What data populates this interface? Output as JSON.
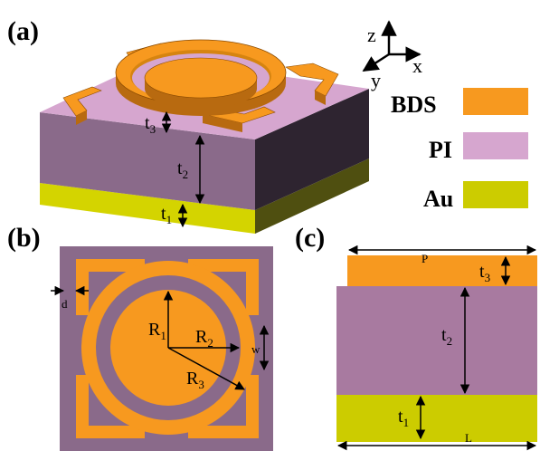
{
  "panels": {
    "a": "(a)",
    "b": "(b)",
    "c": "(c)"
  },
  "axes": {
    "z": "z",
    "x": "x",
    "y": "y"
  },
  "legend": [
    {
      "label": "BDS",
      "color": "#F7991F"
    },
    {
      "label": "PI",
      "color": "#D6A6CF"
    },
    {
      "label": "Au",
      "color": "#CCCC00"
    }
  ],
  "colors": {
    "bds": "#F7991F",
    "pi_top": "#D6A6CF",
    "pi_side": "#8A6A8A",
    "pi_dark": "#2E2430",
    "au": "#D4D400",
    "au_dark": "#5A5A14"
  },
  "labels_a": {
    "t3": "t",
    "t3_sub": "3",
    "t2": "t",
    "t2_sub": "2",
    "t1": "t",
    "t1_sub": "1"
  },
  "labels_b": {
    "d": "d",
    "w": "w",
    "R1": "R",
    "R1_sub": "1",
    "R2": "R",
    "R2_sub": "2",
    "R3": "R",
    "R3_sub": "3"
  },
  "labels_c": {
    "P": "P",
    "L": "L",
    "t3": "t",
    "t3_sub": "3",
    "t2": "t",
    "t2_sub": "2",
    "t1": "t",
    "t1_sub": "1"
  }
}
